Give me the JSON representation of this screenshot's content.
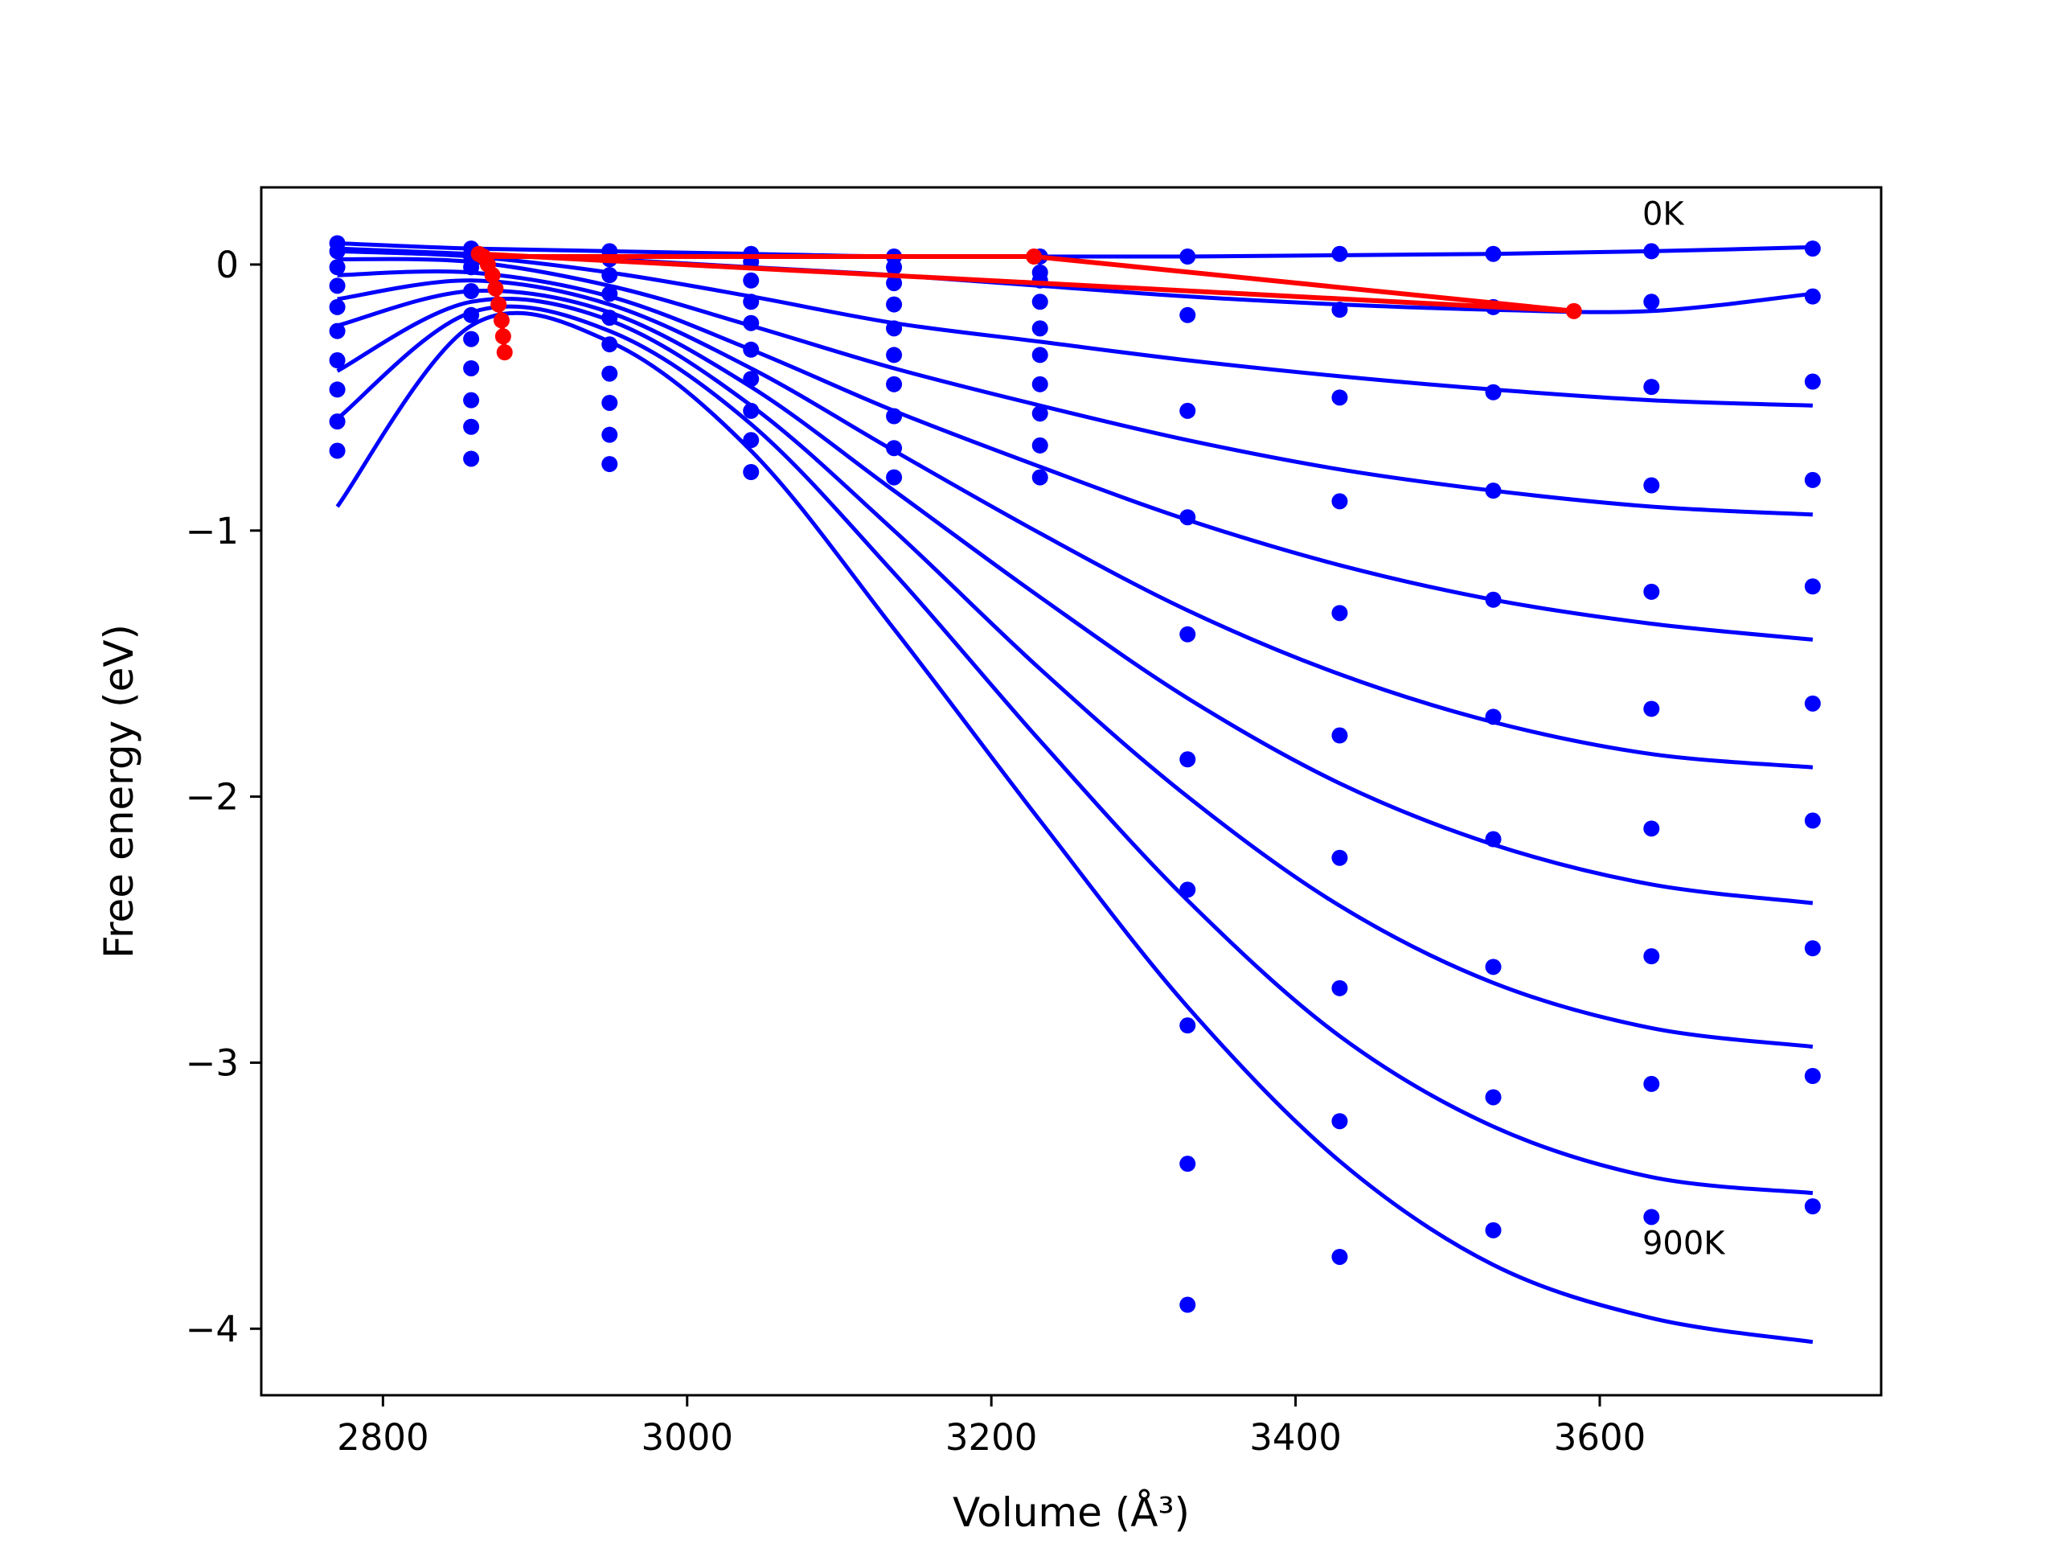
{
  "chart_data": {
    "type": "scatter",
    "xlabel": "Volume (Å³)",
    "ylabel": "Free energy (eV)",
    "xlim": [
      2720,
      3785
    ],
    "ylim": [
      -4.25,
      0.29
    ],
    "x_ticks": [
      2800,
      3000,
      3200,
      3400,
      3600
    ],
    "y_ticks": [
      0,
      -1,
      -2,
      -3,
      -4
    ],
    "y_tick_labels": [
      "0",
      "−1",
      "−2",
      "−3",
      "−4"
    ],
    "grid": false,
    "annotations": [
      {
        "text": "0K",
        "x": 3628,
        "y": 0.15
      },
      {
        "text": "900K",
        "x": 3628,
        "y": -3.72
      }
    ],
    "colors": {
      "series": "#0000ff",
      "minima": "#ff0000"
    },
    "volumes": [
      2770,
      2858,
      2949,
      3042,
      3136,
      3232,
      3329,
      3429,
      3530,
      3634,
      3740
    ],
    "series": [
      {
        "y": [
          0.08,
          0.06,
          0.05,
          0.04,
          0.03,
          0.03,
          0.03,
          0.04,
          0.04,
          0.05,
          0.06
        ],
        "fit": [
          0.08,
          0.06,
          0.05,
          0.04,
          0.03,
          0.03,
          0.03,
          0.035,
          0.04,
          0.05,
          0.065
        ]
      },
      {
        "y": [
          0.05,
          0.03,
          0.02,
          0.01,
          -0.01,
          -0.03,
          -0.19,
          -0.17,
          -0.16,
          -0.14,
          -0.12
        ],
        "fit": [
          0.06,
          0.04,
          0.02,
          -0.01,
          -0.04,
          -0.08,
          -0.12,
          -0.15,
          -0.17,
          -0.175,
          -0.11
        ]
      },
      {
        "y": [
          -0.01,
          -0.01,
          -0.04,
          -0.06,
          -0.07,
          -0.06,
          -0.55,
          -0.5,
          -0.48,
          -0.46,
          -0.44
        ],
        "fit": [
          0.05,
          0.03,
          -0.03,
          -0.12,
          -0.22,
          -0.29,
          -0.36,
          -0.42,
          -0.47,
          -0.51,
          -0.53
        ]
      },
      {
        "y": [
          -0.08,
          -0.1,
          -0.11,
          -0.14,
          -0.15,
          -0.14,
          -0.95,
          -0.89,
          -0.85,
          -0.83,
          -0.81
        ],
        "fit": [
          0.02,
          0.01,
          -0.08,
          -0.23,
          -0.39,
          -0.53,
          -0.66,
          -0.77,
          -0.85,
          -0.91,
          -0.94
        ]
      },
      {
        "y": [
          -0.16,
          -0.19,
          -0.2,
          -0.22,
          -0.24,
          -0.24,
          -1.39,
          -1.31,
          -1.26,
          -1.23,
          -1.21
        ],
        "fit": [
          -0.04,
          -0.03,
          -0.12,
          -0.32,
          -0.55,
          -0.76,
          -0.96,
          -1.13,
          -1.26,
          -1.35,
          -1.41
        ]
      },
      {
        "y": [
          -0.25,
          -0.28,
          -0.3,
          -0.32,
          -0.34,
          -0.34,
          -1.86,
          -1.77,
          -1.7,
          -1.67,
          -1.65
        ],
        "fit": [
          -0.13,
          -0.06,
          -0.15,
          -0.39,
          -0.7,
          -1.01,
          -1.3,
          -1.54,
          -1.72,
          -1.84,
          -1.89
        ]
      },
      {
        "y": [
          -0.36,
          -0.39,
          -0.41,
          -0.43,
          -0.45,
          -0.45,
          -2.35,
          -2.23,
          -2.16,
          -2.12,
          -2.09
        ],
        "fit": [
          -0.23,
          -0.1,
          -0.18,
          -0.46,
          -0.85,
          -1.25,
          -1.63,
          -1.95,
          -2.18,
          -2.33,
          -2.4
        ]
      },
      {
        "y": [
          -0.47,
          -0.51,
          -0.52,
          -0.55,
          -0.57,
          -0.56,
          -2.86,
          -2.72,
          -2.64,
          -2.6,
          -2.57
        ],
        "fit": [
          -0.4,
          -0.14,
          -0.21,
          -0.53,
          -1.0,
          -1.52,
          -2.0,
          -2.41,
          -2.7,
          -2.87,
          -2.94
        ]
      },
      {
        "y": [
          -0.59,
          -0.61,
          -0.64,
          -0.66,
          -0.69,
          -0.68,
          -3.38,
          -3.22,
          -3.13,
          -3.08,
          -3.05
        ],
        "fit": [
          -0.58,
          -0.18,
          -0.25,
          -0.6,
          -1.16,
          -1.79,
          -2.39,
          -2.9,
          -3.24,
          -3.43,
          -3.49
        ]
      },
      {
        "y": [
          -0.7,
          -0.73,
          -0.75,
          -0.78,
          -0.8,
          -0.8,
          -3.91,
          -3.73,
          -3.63,
          -3.58,
          -3.54
        ],
        "fit": [
          -0.91,
          -0.23,
          -0.29,
          -0.7,
          -1.37,
          -2.09,
          -2.79,
          -3.37,
          -3.76,
          -3.96,
          -4.05
        ]
      }
    ],
    "minima_path": {
      "x": [
        2863,
        2866,
        2869,
        2872,
        2874,
        2876,
        2878,
        2879,
        2880
      ],
      "y": [
        0.04,
        0.03,
        0.0,
        -0.04,
        -0.09,
        -0.15,
        -0.21,
        -0.27,
        -0.33
      ]
    },
    "minima_link": {
      "x": [
        2863,
        3583,
        3228,
        2866
      ],
      "y": [
        0.04,
        -0.175,
        0.03,
        0.03
      ]
    }
  }
}
